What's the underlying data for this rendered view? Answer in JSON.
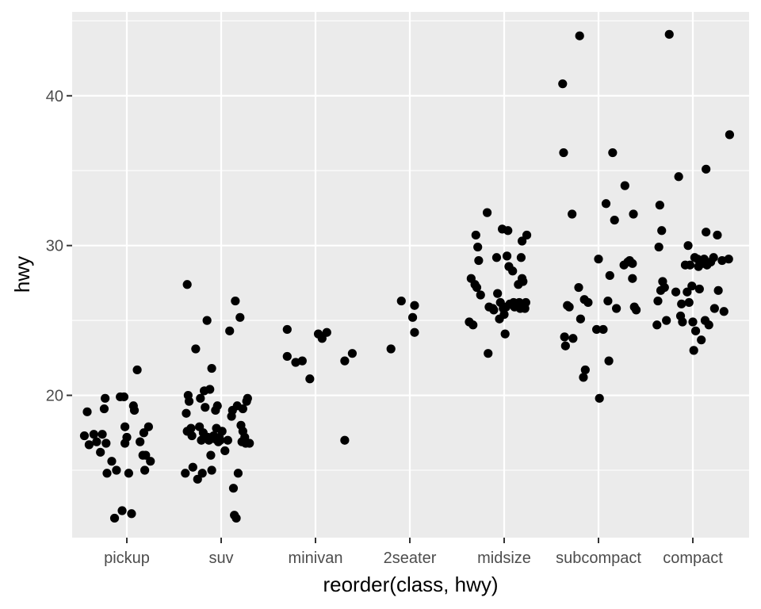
{
  "chart_data": {
    "type": "scatter",
    "xlabel": "reorder(class, hwy)",
    "ylabel": "hwy",
    "categories": [
      "pickup",
      "suv",
      "minivan",
      "2seater",
      "midsize",
      "subcompact",
      "compact"
    ],
    "ylim": [
      10.5,
      45.6
    ],
    "y_ticks": [
      20,
      30,
      40
    ],
    "y_tick_labels": [
      "20",
      "30",
      "40"
    ],
    "grid": true,
    "legend": "none",
    "colors": {
      "panel": "#ebebeb",
      "grid": "#ffffff",
      "point": "#000000"
    },
    "points": [
      {
        "x": 0.55,
        "y": 17.3
      },
      {
        "x": 0.58,
        "y": 18.9
      },
      {
        "x": 0.6,
        "y": 16.7
      },
      {
        "x": 0.65,
        "y": 17.4
      },
      {
        "x": 0.68,
        "y": 16.9
      },
      {
        "x": 0.72,
        "y": 16.2
      },
      {
        "x": 0.74,
        "y": 17.4
      },
      {
        "x": 0.76,
        "y": 19.1
      },
      {
        "x": 0.77,
        "y": 19.8
      },
      {
        "x": 0.78,
        "y": 16.8
      },
      {
        "x": 0.79,
        "y": 14.8
      },
      {
        "x": 0.84,
        "y": 15.6
      },
      {
        "x": 0.87,
        "y": 11.8
      },
      {
        "x": 0.89,
        "y": 15.0
      },
      {
        "x": 0.93,
        "y": 19.9
      },
      {
        "x": 0.95,
        "y": 12.3
      },
      {
        "x": 0.97,
        "y": 19.9
      },
      {
        "x": 0.98,
        "y": 16.8
      },
      {
        "x": 0.98,
        "y": 17.9
      },
      {
        "x": 1.0,
        "y": 17.2
      },
      {
        "x": 1.02,
        "y": 14.8
      },
      {
        "x": 1.05,
        "y": 12.1
      },
      {
        "x": 1.07,
        "y": 19.3
      },
      {
        "x": 1.08,
        "y": 19.0
      },
      {
        "x": 1.11,
        "y": 21.7
      },
      {
        "x": 1.14,
        "y": 16.9
      },
      {
        "x": 1.17,
        "y": 16.0
      },
      {
        "x": 1.18,
        "y": 17.5
      },
      {
        "x": 1.19,
        "y": 15.0
      },
      {
        "x": 1.2,
        "y": 16.0
      },
      {
        "x": 1.23,
        "y": 17.9
      },
      {
        "x": 1.25,
        "y": 15.6
      },
      {
        "x": 1.62,
        "y": 14.8
      },
      {
        "x": 1.63,
        "y": 18.8
      },
      {
        "x": 1.64,
        "y": 17.6
      },
      {
        "x": 1.64,
        "y": 27.4
      },
      {
        "x": 1.65,
        "y": 20.0
      },
      {
        "x": 1.66,
        "y": 19.6
      },
      {
        "x": 1.68,
        "y": 17.8
      },
      {
        "x": 1.69,
        "y": 17.3
      },
      {
        "x": 1.7,
        "y": 15.2
      },
      {
        "x": 1.73,
        "y": 23.1
      },
      {
        "x": 1.75,
        "y": 14.4
      },
      {
        "x": 1.77,
        "y": 17.9
      },
      {
        "x": 1.78,
        "y": 19.8
      },
      {
        "x": 1.79,
        "y": 17.0
      },
      {
        "x": 1.8,
        "y": 14.8
      },
      {
        "x": 1.81,
        "y": 17.5
      },
      {
        "x": 1.82,
        "y": 20.3
      },
      {
        "x": 1.83,
        "y": 19.2
      },
      {
        "x": 1.85,
        "y": 25.0
      },
      {
        "x": 1.86,
        "y": 17.2
      },
      {
        "x": 1.87,
        "y": 17.0
      },
      {
        "x": 1.88,
        "y": 20.4
      },
      {
        "x": 1.89,
        "y": 16.0
      },
      {
        "x": 1.9,
        "y": 15.0
      },
      {
        "x": 1.9,
        "y": 21.8
      },
      {
        "x": 1.92,
        "y": 17.3
      },
      {
        "x": 1.93,
        "y": 17.1
      },
      {
        "x": 1.94,
        "y": 19.0
      },
      {
        "x": 1.95,
        "y": 17.8
      },
      {
        "x": 1.96,
        "y": 19.3
      },
      {
        "x": 1.97,
        "y": 16.9
      },
      {
        "x": 1.98,
        "y": 17.2
      },
      {
        "x": 1.99,
        "y": 17.0
      },
      {
        "x": 2.01,
        "y": 17.6
      },
      {
        "x": 2.04,
        "y": 16.3
      },
      {
        "x": 2.07,
        "y": 17.0
      },
      {
        "x": 2.09,
        "y": 24.3
      },
      {
        "x": 2.11,
        "y": 18.6
      },
      {
        "x": 2.12,
        "y": 19.0
      },
      {
        "x": 2.13,
        "y": 13.8
      },
      {
        "x": 2.14,
        "y": 12.0
      },
      {
        "x": 2.15,
        "y": 26.3
      },
      {
        "x": 2.16,
        "y": 11.8
      },
      {
        "x": 2.17,
        "y": 19.3
      },
      {
        "x": 2.18,
        "y": 14.8
      },
      {
        "x": 2.2,
        "y": 25.2
      },
      {
        "x": 2.21,
        "y": 18.0
      },
      {
        "x": 2.22,
        "y": 16.9
      },
      {
        "x": 2.23,
        "y": 17.6
      },
      {
        "x": 2.23,
        "y": 19.1
      },
      {
        "x": 2.25,
        "y": 17.2
      },
      {
        "x": 2.26,
        "y": 16.8
      },
      {
        "x": 2.27,
        "y": 19.6
      },
      {
        "x": 2.28,
        "y": 19.8
      },
      {
        "x": 2.3,
        "y": 16.8
      },
      {
        "x": 2.7,
        "y": 22.6
      },
      {
        "x": 2.7,
        "y": 24.4
      },
      {
        "x": 2.79,
        "y": 22.2
      },
      {
        "x": 2.86,
        "y": 22.3
      },
      {
        "x": 2.94,
        "y": 21.1
      },
      {
        "x": 3.03,
        "y": 24.1
      },
      {
        "x": 3.07,
        "y": 23.8
      },
      {
        "x": 3.12,
        "y": 24.2
      },
      {
        "x": 3.31,
        "y": 22.3
      },
      {
        "x": 3.31,
        "y": 17.0
      },
      {
        "x": 3.39,
        "y": 22.8
      },
      {
        "x": 3.8,
        "y": 23.1
      },
      {
        "x": 3.91,
        "y": 26.3
      },
      {
        "x": 4.03,
        "y": 25.2
      },
      {
        "x": 4.05,
        "y": 26.0
      },
      {
        "x": 4.05,
        "y": 24.2
      },
      {
        "x": 4.63,
        "y": 24.9
      },
      {
        "x": 4.65,
        "y": 27.8
      },
      {
        "x": 4.67,
        "y": 24.7
      },
      {
        "x": 4.69,
        "y": 27.4
      },
      {
        "x": 4.7,
        "y": 30.7
      },
      {
        "x": 4.71,
        "y": 27.2
      },
      {
        "x": 4.72,
        "y": 29.9
      },
      {
        "x": 4.73,
        "y": 29.0
      },
      {
        "x": 4.75,
        "y": 26.7
      },
      {
        "x": 4.82,
        "y": 32.2
      },
      {
        "x": 4.83,
        "y": 22.8
      },
      {
        "x": 4.84,
        "y": 25.9
      },
      {
        "x": 4.88,
        "y": 25.8
      },
      {
        "x": 4.89,
        "y": 25.7
      },
      {
        "x": 4.92,
        "y": 29.2
      },
      {
        "x": 4.93,
        "y": 26.8
      },
      {
        "x": 4.95,
        "y": 25.1
      },
      {
        "x": 4.96,
        "y": 26.2
      },
      {
        "x": 4.98,
        "y": 31.1
      },
      {
        "x": 4.99,
        "y": 25.8
      },
      {
        "x": 5.0,
        "y": 25.4
      },
      {
        "x": 5.01,
        "y": 24.1
      },
      {
        "x": 5.02,
        "y": 25.9
      },
      {
        "x": 5.03,
        "y": 29.3
      },
      {
        "x": 5.04,
        "y": 31.0
      },
      {
        "x": 5.05,
        "y": 28.6
      },
      {
        "x": 5.06,
        "y": 26.1
      },
      {
        "x": 5.09,
        "y": 28.3
      },
      {
        "x": 5.1,
        "y": 26.2
      },
      {
        "x": 5.11,
        "y": 25.9
      },
      {
        "x": 5.15,
        "y": 27.4
      },
      {
        "x": 5.16,
        "y": 26.2
      },
      {
        "x": 5.17,
        "y": 25.8
      },
      {
        "x": 5.18,
        "y": 29.2
      },
      {
        "x": 5.19,
        "y": 27.8
      },
      {
        "x": 5.2,
        "y": 27.6
      },
      {
        "x": 5.19,
        "y": 30.3
      },
      {
        "x": 5.22,
        "y": 25.8
      },
      {
        "x": 5.23,
        "y": 26.2
      },
      {
        "x": 5.24,
        "y": 30.7
      },
      {
        "x": 5.62,
        "y": 40.8
      },
      {
        "x": 5.63,
        "y": 36.2
      },
      {
        "x": 5.64,
        "y": 23.9
      },
      {
        "x": 5.65,
        "y": 23.3
      },
      {
        "x": 5.67,
        "y": 26.0
      },
      {
        "x": 5.69,
        "y": 25.9
      },
      {
        "x": 5.72,
        "y": 32.1
      },
      {
        "x": 5.73,
        "y": 23.8
      },
      {
        "x": 5.79,
        "y": 27.2
      },
      {
        "x": 5.8,
        "y": 44.0
      },
      {
        "x": 5.81,
        "y": 25.1
      },
      {
        "x": 5.84,
        "y": 21.2
      },
      {
        "x": 5.86,
        "y": 21.7
      },
      {
        "x": 5.85,
        "y": 26.4
      },
      {
        "x": 5.89,
        "y": 26.2
      },
      {
        "x": 5.98,
        "y": 24.4
      },
      {
        "x": 6.0,
        "y": 29.1
      },
      {
        "x": 6.01,
        "y": 19.8
      },
      {
        "x": 6.05,
        "y": 24.4
      },
      {
        "x": 6.08,
        "y": 32.8
      },
      {
        "x": 6.1,
        "y": 26.3
      },
      {
        "x": 6.11,
        "y": 22.3
      },
      {
        "x": 6.12,
        "y": 28.0
      },
      {
        "x": 6.15,
        "y": 36.2
      },
      {
        "x": 6.17,
        "y": 31.7
      },
      {
        "x": 6.19,
        "y": 25.8
      },
      {
        "x": 6.27,
        "y": 28.7
      },
      {
        "x": 6.28,
        "y": 34.0
      },
      {
        "x": 6.31,
        "y": 28.9
      },
      {
        "x": 6.33,
        "y": 29.0
      },
      {
        "x": 6.36,
        "y": 28.8
      },
      {
        "x": 6.36,
        "y": 27.8
      },
      {
        "x": 6.37,
        "y": 32.1
      },
      {
        "x": 6.38,
        "y": 25.9
      },
      {
        "x": 6.4,
        "y": 25.7
      },
      {
        "x": 6.62,
        "y": 24.7
      },
      {
        "x": 6.63,
        "y": 26.3
      },
      {
        "x": 6.64,
        "y": 29.9
      },
      {
        "x": 6.65,
        "y": 32.7
      },
      {
        "x": 6.66,
        "y": 27.0
      },
      {
        "x": 6.67,
        "y": 31.0
      },
      {
        "x": 6.68,
        "y": 27.6
      },
      {
        "x": 6.7,
        "y": 27.2
      },
      {
        "x": 6.72,
        "y": 25.0
      },
      {
        "x": 6.75,
        "y": 44.1
      },
      {
        "x": 6.82,
        "y": 26.9
      },
      {
        "x": 6.85,
        "y": 34.6
      },
      {
        "x": 6.87,
        "y": 25.3
      },
      {
        "x": 6.88,
        "y": 26.1
      },
      {
        "x": 6.89,
        "y": 24.9
      },
      {
        "x": 6.92,
        "y": 28.7
      },
      {
        "x": 6.94,
        "y": 26.9
      },
      {
        "x": 6.95,
        "y": 30.0
      },
      {
        "x": 6.96,
        "y": 26.2
      },
      {
        "x": 6.97,
        "y": 28.7
      },
      {
        "x": 6.99,
        "y": 27.3
      },
      {
        "x": 7.0,
        "y": 24.9
      },
      {
        "x": 7.01,
        "y": 23.0
      },
      {
        "x": 7.02,
        "y": 29.2
      },
      {
        "x": 7.03,
        "y": 24.3
      },
      {
        "x": 7.05,
        "y": 29.1
      },
      {
        "x": 7.06,
        "y": 28.6
      },
      {
        "x": 7.07,
        "y": 27.1
      },
      {
        "x": 7.09,
        "y": 23.7
      },
      {
        "x": 7.1,
        "y": 28.8
      },
      {
        "x": 7.12,
        "y": 29.1
      },
      {
        "x": 7.13,
        "y": 25.0
      },
      {
        "x": 7.14,
        "y": 30.9
      },
      {
        "x": 7.14,
        "y": 35.1
      },
      {
        "x": 7.15,
        "y": 28.7
      },
      {
        "x": 7.17,
        "y": 24.7
      },
      {
        "x": 7.19,
        "y": 28.9
      },
      {
        "x": 7.22,
        "y": 29.2
      },
      {
        "x": 7.23,
        "y": 25.8
      },
      {
        "x": 7.26,
        "y": 30.7
      },
      {
        "x": 7.27,
        "y": 27.0
      },
      {
        "x": 7.31,
        "y": 29.0
      },
      {
        "x": 7.33,
        "y": 25.6
      },
      {
        "x": 7.38,
        "y": 29.1
      },
      {
        "x": 7.39,
        "y": 37.4
      }
    ]
  }
}
